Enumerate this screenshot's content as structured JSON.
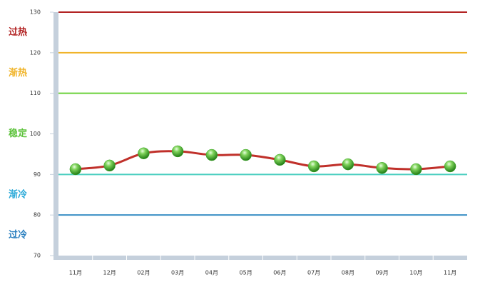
{
  "chart_data": {
    "type": "line",
    "categories": [
      "11月",
      "12月",
      "02月",
      "03月",
      "04月",
      "05月",
      "06月",
      "07月",
      "08月",
      "09月",
      "10月",
      "11月"
    ],
    "values": [
      91.3,
      92.2,
      95.2,
      95.7,
      94.8,
      94.8,
      93.6,
      92.0,
      92.5,
      91.6,
      91.3,
      92.0
    ],
    "color": "#c0302a",
    "marker_color": "#3fa82a",
    "ylim": [
      70,
      130
    ],
    "yticks": [
      70,
      80,
      90,
      100,
      110,
      120,
      130
    ],
    "reference_lines": [
      {
        "value": 130,
        "color": "#b22222"
      },
      {
        "value": 120,
        "color": "#f0b429"
      },
      {
        "value": 110,
        "color": "#6ad13a"
      },
      {
        "value": 90,
        "color": "#4ccfc0"
      },
      {
        "value": 80,
        "color": "#3a8fc4"
      }
    ],
    "zones": [
      {
        "label": "过热",
        "color": "#b22222"
      },
      {
        "label": "渐热",
        "color": "#f0b429"
      },
      {
        "label": "稳定",
        "color": "#5cc23a"
      },
      {
        "label": "渐冷",
        "color": "#2aa9d8"
      },
      {
        "label": "过冷",
        "color": "#2a7fbf"
      }
    ]
  }
}
